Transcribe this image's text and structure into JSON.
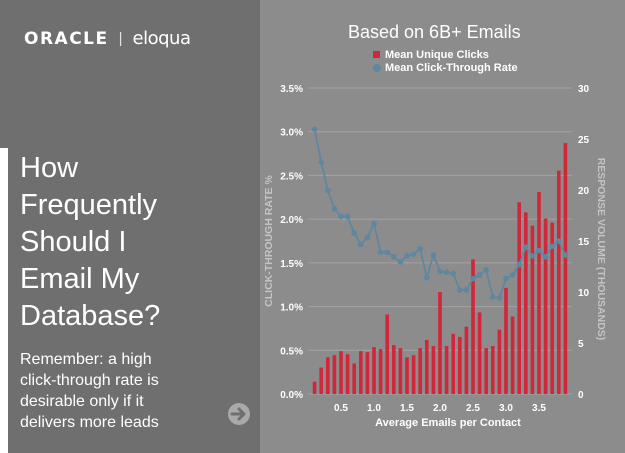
{
  "brand": {
    "oracle": "ORACLE",
    "separator": "|",
    "eloqua": "eloqua"
  },
  "headline": {
    "lines": [
      "How",
      "Frequently",
      "Should I",
      "Email My",
      "Database?"
    ]
  },
  "subtext": {
    "lines": [
      "Remember: a high",
      "click-through rate is",
      "desirable only if it",
      "delivers more leads"
    ]
  },
  "icons": {
    "next": "arrow-right-circle-icon"
  },
  "colors": {
    "left_panel": "#6f6f6f",
    "chart_bg": "#8c8c8c",
    "bars": "#d1273a",
    "line": "#5f87a0",
    "text": "#ffffff"
  },
  "chart_data": {
    "type": "bar+line",
    "title": "Based on 6B+ Emails",
    "xlabel": "Average Emails per Contact",
    "ylabel_left": "CLICK-THROUGH RATE %",
    "ylabel_right": "RESPONSE VOLUME (THOUSANDS)",
    "xlim": [
      0,
      4
    ],
    "x_ticks": [
      "0.5",
      "1.0",
      "1.5",
      "2.0",
      "2.5",
      "3.0",
      "3.5"
    ],
    "ylim_left": [
      0,
      3.5
    ],
    "y_ticks_left": [
      "0.0%",
      "0.5%",
      "1.0%",
      "1.5%",
      "2.0%",
      "2.5%",
      "3.0%",
      "3.5%"
    ],
    "ylim_right": [
      0,
      30
    ],
    "y_ticks_right": [
      "0",
      "5",
      "10",
      "15",
      "20",
      "25",
      "30"
    ],
    "grid": true,
    "legend_position": "top",
    "x": [
      0.1,
      0.2,
      0.3,
      0.4,
      0.5,
      0.6,
      0.7,
      0.8,
      0.9,
      1.0,
      1.1,
      1.2,
      1.3,
      1.4,
      1.5,
      1.6,
      1.7,
      1.8,
      1.9,
      2.0,
      2.1,
      2.2,
      2.3,
      2.4,
      2.5,
      2.6,
      2.7,
      2.8,
      2.9,
      3.0,
      3.1,
      3.2,
      3.3,
      3.4,
      3.5,
      3.6,
      3.7,
      3.8,
      3.9
    ],
    "series": [
      {
        "name": "Mean Unique Clicks",
        "kind": "bar",
        "axis": "right",
        "color": "#d1273a",
        "values": [
          1.2,
          2.6,
          3.6,
          3.8,
          4.2,
          3.9,
          3.0,
          4.2,
          4.1,
          4.6,
          4.4,
          7.8,
          4.8,
          4.5,
          3.6,
          3.8,
          4.5,
          5.3,
          4.7,
          10.0,
          4.7,
          5.9,
          5.6,
          6.6,
          13.2,
          8.0,
          4.5,
          4.7,
          6.3,
          10.4,
          7.6,
          18.8,
          17.8,
          16.5,
          19.8,
          17.2,
          16.8,
          21.9,
          24.6
        ]
      },
      {
        "name": "Mean Click-Through Rate",
        "kind": "line",
        "axis": "left",
        "color": "#5f87a0",
        "values": [
          3.03,
          2.65,
          2.33,
          2.12,
          2.03,
          2.03,
          1.84,
          1.71,
          1.79,
          1.95,
          1.62,
          1.62,
          1.57,
          1.51,
          1.58,
          1.6,
          1.66,
          1.33,
          1.59,
          1.4,
          1.39,
          1.38,
          1.19,
          1.19,
          1.32,
          1.36,
          1.42,
          1.11,
          1.1,
          1.32,
          1.36,
          1.48,
          1.68,
          1.58,
          1.64,
          1.57,
          1.69,
          1.75,
          1.59
        ]
      }
    ]
  }
}
